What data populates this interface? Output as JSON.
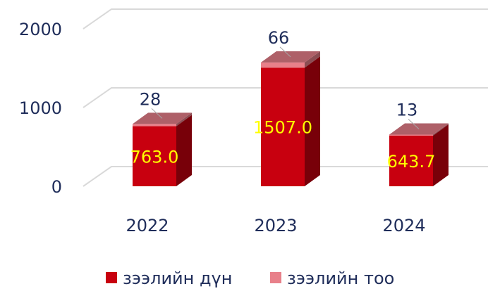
{
  "chart_data": {
    "type": "bar3d_stacked",
    "categories": [
      "2022",
      "2023",
      "2024"
    ],
    "series": [
      {
        "name": "зээлийн дүн",
        "color": "#c8000f",
        "values": [
          763.0,
          1507.0,
          643.7
        ],
        "value_labels": [
          "763.0",
          "1507.0",
          "643.7"
        ]
      },
      {
        "name": "зээлийн тоо",
        "color": "#e8808a",
        "values": [
          28,
          66,
          13
        ]
      }
    ],
    "ylim": [
      0,
      2000
    ],
    "yticks": [
      0,
      1000,
      2000
    ],
    "grid": true
  }
}
